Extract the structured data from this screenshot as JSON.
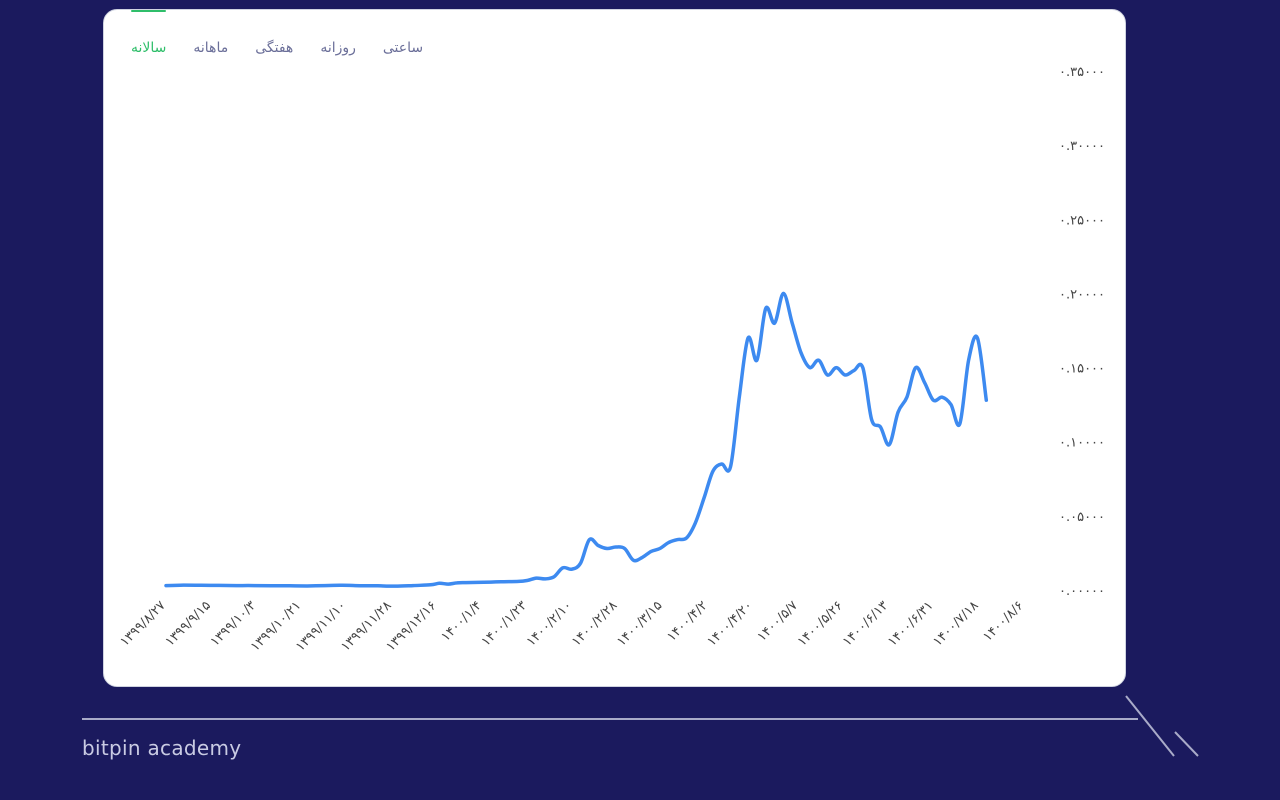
{
  "tabs": [
    {
      "label": "سالانه",
      "active": true
    },
    {
      "label": "ماهانه",
      "active": false
    },
    {
      "label": "هفتگی",
      "active": false
    },
    {
      "label": "روزانه",
      "active": false
    },
    {
      "label": "ساعتی",
      "active": false
    }
  ],
  "brand": "bitpin academy",
  "colors": {
    "background": "#1b1a5e",
    "line": "#3d8af0",
    "active_tab": "#2fbe6a",
    "tab": "#6b6f99"
  },
  "chart_data": {
    "type": "line",
    "title": "",
    "xlabel": "",
    "ylabel": "",
    "ylim": [
      0,
      0.35
    ],
    "y_ticks": [
      0,
      0.05,
      0.1,
      0.15,
      0.2,
      0.25,
      0.3,
      0.35
    ],
    "y_tick_labels": [
      "۰.۰۰۰۰۰",
      "۰.۰۵۰۰۰",
      "۰.۱۰۰۰۰",
      "۰.۱۵۰۰۰",
      "۰.۲۰۰۰۰",
      "۰.۲۵۰۰۰",
      "۰.۳۰۰۰۰",
      "۰.۳۵۰۰۰"
    ],
    "x_tick_labels": [
      "۱۳۹۹/۸/۲۷",
      "۱۳۹۹/۹/۱۵",
      "۱۳۹۹/۱۰/۳",
      "۱۳۹۹/۱۰/۲۱",
      "۱۳۹۹/۱۱/۱۰",
      "۱۳۹۹/۱۱/۲۸",
      "۱۳۹۹/۱۲/۱۶",
      "۱۴۰۰/۱/۴",
      "۱۴۰۰/۱/۲۳",
      "۱۴۰۰/۲/۱۰",
      "۱۴۰۰/۲/۲۸",
      "۱۴۰۰/۳/۱۵",
      "۱۴۰۰/۴/۲",
      "۱۴۰۰/۴/۲۰",
      "۱۴۰۰/۵/۷",
      "۱۴۰۰/۵/۲۶",
      "۱۴۰۰/۶/۱۳",
      "۱۴۰۰/۶/۳۱",
      "۱۴۰۰/۷/۱۸",
      "۱۴۰۰/۸/۶"
    ],
    "x_range": [
      0,
      100
    ],
    "series": [
      {
        "points": [
          [
            0,
            0.003
          ],
          [
            2,
            0.0033
          ],
          [
            4,
            0.0032
          ],
          [
            6,
            0.0031
          ],
          [
            8,
            0.003
          ],
          [
            10,
            0.003
          ],
          [
            12,
            0.0029
          ],
          [
            14,
            0.0028
          ],
          [
            16,
            0.0027
          ],
          [
            18,
            0.003
          ],
          [
            20,
            0.0032
          ],
          [
            22,
            0.0029
          ],
          [
            24,
            0.0028
          ],
          [
            26,
            0.0026
          ],
          [
            28,
            0.003
          ],
          [
            30,
            0.0035
          ],
          [
            31,
            0.0045
          ],
          [
            32,
            0.004
          ],
          [
            33,
            0.0048
          ],
          [
            34,
            0.005
          ],
          [
            36,
            0.0052
          ],
          [
            38,
            0.0055
          ],
          [
            40,
            0.0058
          ],
          [
            41,
            0.0065
          ],
          [
            42,
            0.008
          ],
          [
            43,
            0.0075
          ],
          [
            44,
            0.009
          ],
          [
            45,
            0.015
          ],
          [
            46,
            0.014
          ],
          [
            47,
            0.018
          ],
          [
            48,
            0.034
          ],
          [
            49,
            0.03
          ],
          [
            50,
            0.028
          ],
          [
            51,
            0.029
          ],
          [
            52,
            0.028
          ],
          [
            53,
            0.02
          ],
          [
            54,
            0.022
          ],
          [
            55,
            0.026
          ],
          [
            56,
            0.028
          ],
          [
            57,
            0.032
          ],
          [
            58,
            0.034
          ],
          [
            59,
            0.035
          ],
          [
            60,
            0.045
          ],
          [
            61,
            0.062
          ],
          [
            62,
            0.08
          ],
          [
            63,
            0.085
          ],
          [
            64,
            0.083
          ],
          [
            65,
            0.13
          ],
          [
            66,
            0.17
          ],
          [
            67,
            0.155
          ],
          [
            68,
            0.19
          ],
          [
            69,
            0.18
          ],
          [
            70,
            0.2
          ],
          [
            71,
            0.18
          ],
          [
            72,
            0.16
          ],
          [
            73,
            0.15
          ],
          [
            74,
            0.155
          ],
          [
            75,
            0.145
          ],
          [
            76,
            0.15
          ],
          [
            77,
            0.145
          ],
          [
            78,
            0.148
          ],
          [
            79,
            0.15
          ],
          [
            80,
            0.115
          ],
          [
            81,
            0.11
          ],
          [
            82,
            0.098
          ],
          [
            83,
            0.12
          ],
          [
            84,
            0.13
          ],
          [
            85,
            0.15
          ],
          [
            86,
            0.14
          ],
          [
            87,
            0.128
          ],
          [
            88,
            0.13
          ],
          [
            89,
            0.125
          ],
          [
            90,
            0.112
          ],
          [
            91,
            0.155
          ],
          [
            92,
            0.17
          ],
          [
            93,
            0.128
          ]
        ]
      }
    ]
  }
}
